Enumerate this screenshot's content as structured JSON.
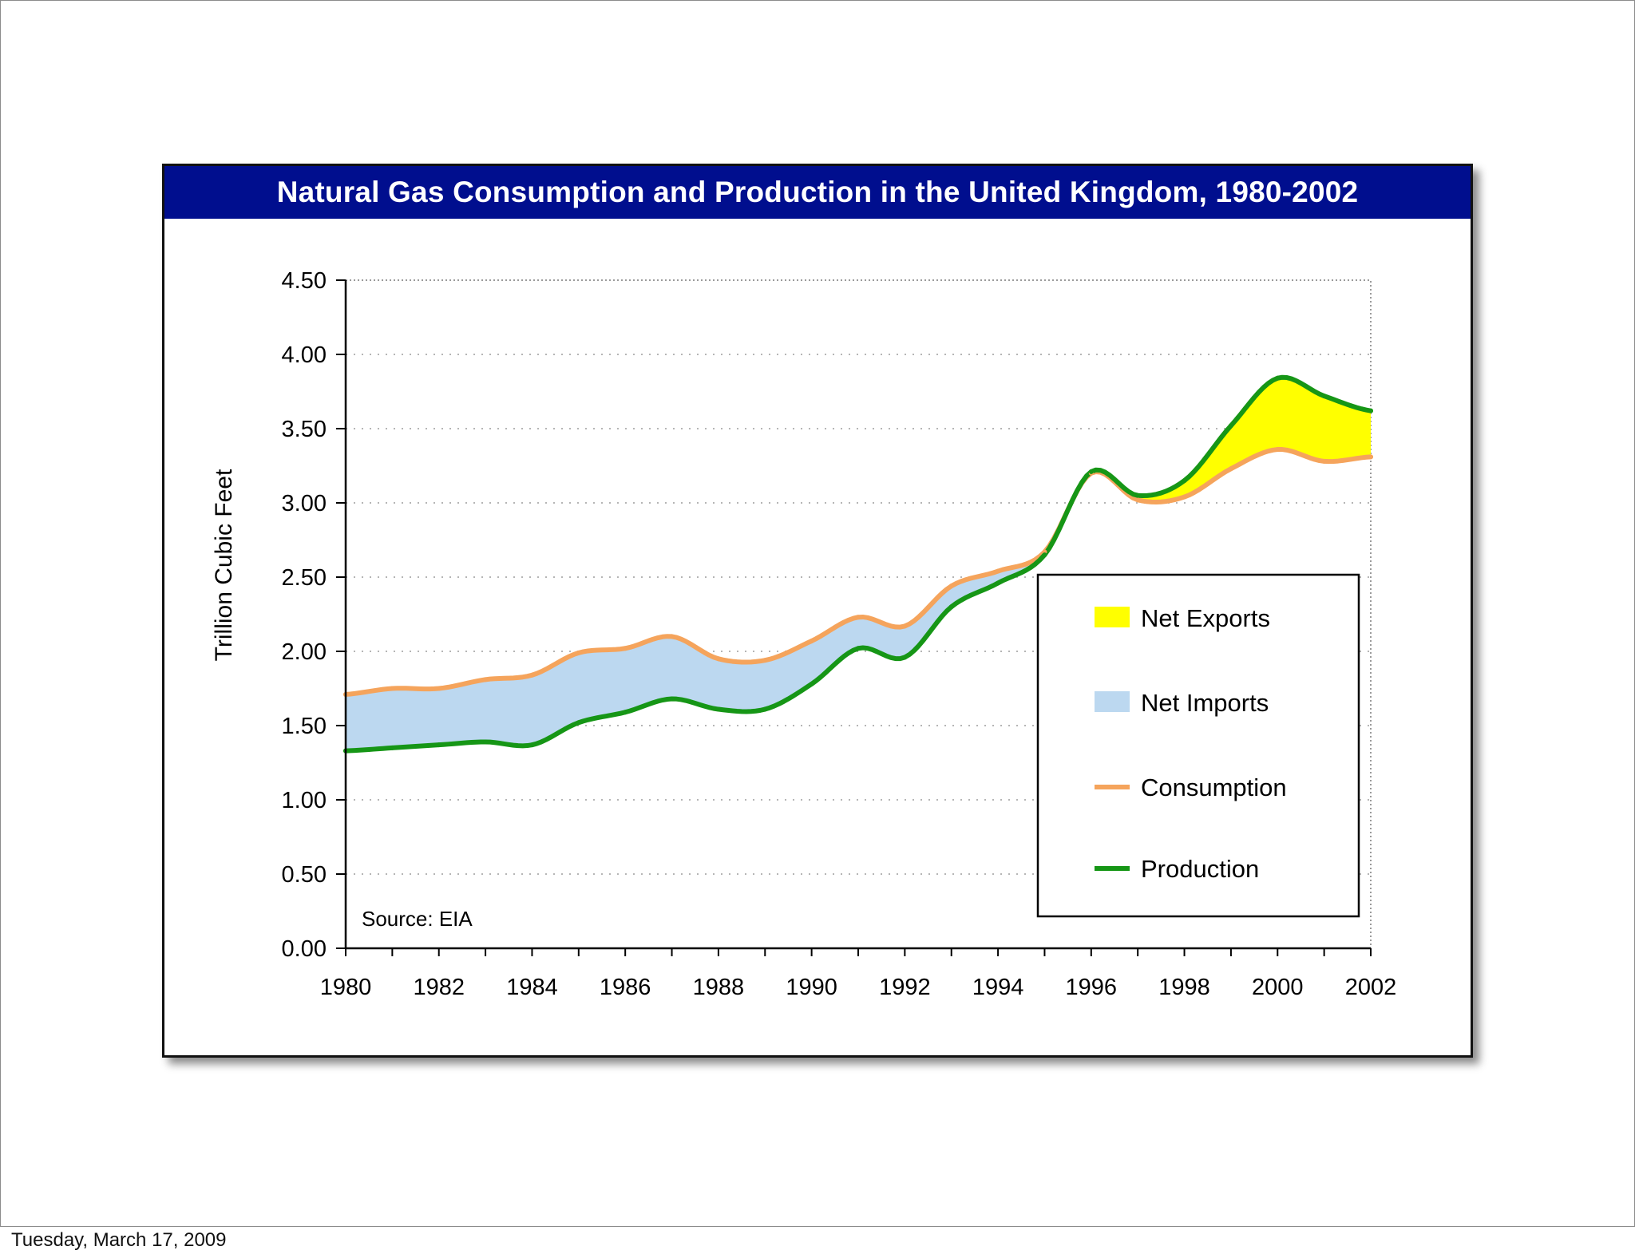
{
  "footer": {
    "date": "Tuesday, March 17, 2009"
  },
  "chart_data": {
    "type": "area",
    "title": "Natural Gas Consumption and Production in the United Kingdom, 1980-2002",
    "ylabel": "Trillion Cubic Feet",
    "xlabel": "",
    "source_note": "Source: EIA",
    "xlim": [
      1980,
      2002
    ],
    "ylim": [
      0,
      4.5
    ],
    "x_ticks": [
      "1980",
      "1982",
      "1984",
      "1986",
      "1988",
      "1990",
      "1992",
      "1994",
      "1996",
      "1998",
      "2000",
      "2002"
    ],
    "y_ticks": [
      "0.00",
      "0.50",
      "1.00",
      "1.50",
      "2.00",
      "2.50",
      "3.00",
      "3.50",
      "4.00",
      "4.50"
    ],
    "grid": "horizontal dotted",
    "legend_position": "lower-right",
    "series": [
      {
        "name": "Consumption",
        "color": "#f5a45c",
        "x": [
          1980,
          1981,
          1982,
          1983,
          1984,
          1985,
          1986,
          1987,
          1988,
          1989,
          1990,
          1991,
          1992,
          1993,
          1994,
          1995,
          1996,
          1997,
          1998,
          1999,
          2000,
          2001,
          2002
        ],
        "values": [
          1.71,
          1.75,
          1.75,
          1.81,
          1.84,
          1.99,
          2.02,
          2.1,
          1.95,
          1.94,
          2.07,
          2.23,
          2.17,
          2.44,
          2.54,
          2.67,
          3.2,
          3.02,
          3.04,
          3.23,
          3.36,
          3.28,
          3.31
        ]
      },
      {
        "name": "Production",
        "color": "#169616",
        "x": [
          1980,
          1981,
          1982,
          1983,
          1984,
          1985,
          1986,
          1987,
          1988,
          1989,
          1990,
          1991,
          1992,
          1993,
          1994,
          1995,
          1996,
          1997,
          1998,
          1999,
          2000,
          2001,
          2002
        ],
        "values": [
          1.33,
          1.35,
          1.37,
          1.39,
          1.37,
          1.52,
          1.59,
          1.68,
          1.61,
          1.61,
          1.78,
          2.02,
          1.96,
          2.3,
          2.46,
          2.65,
          3.21,
          3.05,
          3.15,
          3.52,
          3.84,
          3.72,
          3.62
        ]
      }
    ],
    "areas": [
      {
        "name": "Net Exports",
        "color": "#ffff00"
      },
      {
        "name": "Net Imports",
        "color": "#bcd8f0"
      }
    ],
    "legend": [
      "Net Exports",
      "Net Imports",
      "Consumption",
      "Production"
    ]
  }
}
